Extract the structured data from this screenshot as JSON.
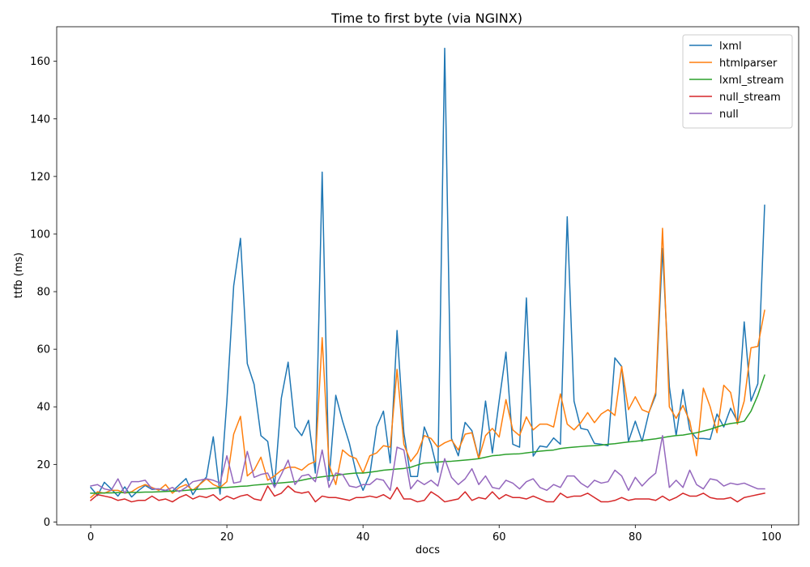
{
  "chart_data": {
    "type": "line",
    "title": "Time to first byte (via NGINX)",
    "xlabel": "docs",
    "ylabel": "ttfb (ms)",
    "xlim": [
      -5,
      104
    ],
    "ylim": [
      -1,
      172
    ],
    "xticks": [
      0,
      20,
      40,
      60,
      80,
      100
    ],
    "yticks": [
      0,
      20,
      40,
      60,
      80,
      100,
      120,
      140,
      160
    ],
    "grid": false,
    "legend_position": "top-right",
    "series": [
      {
        "name": "lxml",
        "color": "#1f77b4",
        "values": [
          12.0,
          9.2,
          13.8,
          11.5,
          9.0,
          12.2,
          8.7,
          10.9,
          12.7,
          11.3,
          11.5,
          10.8,
          10.7,
          12.9,
          15.1,
          9.5,
          13.1,
          15.6,
          29.6,
          9.7,
          42.0,
          82.0,
          98.5,
          55.0,
          47.8,
          30.0,
          28.0,
          12.4,
          43.0,
          55.5,
          33.0,
          30.0,
          35.3,
          17.0,
          121.5,
          14.4,
          44.0,
          35.0,
          27.3,
          17.0,
          11.0,
          16.4,
          33.0,
          38.5,
          20.5,
          66.5,
          31.0,
          15.8,
          15.8,
          33.0,
          27.0,
          17.3,
          164.5,
          29.0,
          23.0,
          34.6,
          31.7,
          22.0,
          42.0,
          24.0,
          42.0,
          59.0,
          27.0,
          26.0,
          77.8,
          22.9,
          26.4,
          26.0,
          29.2,
          27.0,
          106.0,
          42.0,
          32.5,
          32.0,
          27.3,
          27.0,
          26.5,
          57.0,
          54.0,
          28.0,
          35.0,
          28.0,
          38.0,
          44.0,
          95.0,
          47.0,
          30.0,
          46.0,
          32.0,
          29.0,
          29.0,
          28.7,
          37.5,
          33.0,
          39.5,
          35.0,
          69.5,
          42.0,
          48.0,
          110.0
        ]
      },
      {
        "name": "htmlparser",
        "color": "#ff7f0e",
        "values": [
          8.5,
          10.5,
          10.0,
          11.0,
          11.0,
          10.0,
          10.5,
          12.0,
          13.0,
          12.0,
          11.0,
          13.0,
          10.0,
          12.0,
          13.0,
          11.0,
          13.0,
          15.0,
          13.0,
          12.0,
          14.0,
          30.5,
          36.7,
          16.0,
          18.0,
          22.5,
          14.5,
          16.0,
          18.0,
          19.0,
          19.0,
          18.0,
          20.0,
          21.0,
          64.0,
          20.0,
          13.0,
          25.0,
          23.0,
          22.0,
          17.0,
          23.0,
          24.0,
          26.5,
          26.0,
          53.0,
          27.0,
          21.0,
          24.0,
          30.0,
          29.0,
          26.0,
          27.5,
          28.5,
          25.0,
          30.5,
          31.0,
          22.0,
          30.0,
          32.5,
          29.5,
          42.5,
          32.0,
          30.0,
          36.5,
          32.0,
          34.0,
          34.0,
          33.0,
          44.5,
          34.0,
          32.0,
          34.5,
          38.0,
          34.5,
          37.5,
          39.0,
          37.0,
          54.0,
          39.0,
          43.5,
          39.0,
          38.0,
          45.0,
          102.0,
          40.0,
          36.0,
          40.5,
          35.0,
          23.0,
          46.5,
          40.0,
          31.0,
          47.5,
          45.0,
          34.0,
          42.0,
          60.5,
          61.0,
          73.5
        ]
      },
      {
        "name": "lxml_stream",
        "color": "#2ca02c",
        "values": [
          10.0,
          10.0,
          10.1,
          10.1,
          10.2,
          10.2,
          10.3,
          10.3,
          10.4,
          10.4,
          10.5,
          10.6,
          10.7,
          10.8,
          11.0,
          11.2,
          11.4,
          11.5,
          11.7,
          11.9,
          12.0,
          12.2,
          12.4,
          12.5,
          12.8,
          13.0,
          13.2,
          13.4,
          13.6,
          13.8,
          14.0,
          14.5,
          15.0,
          15.4,
          15.7,
          16.0,
          16.2,
          16.5,
          16.8,
          17.0,
          17.0,
          17.3,
          17.6,
          18.0,
          18.2,
          18.4,
          18.6,
          19.0,
          19.8,
          20.5,
          20.6,
          20.8,
          21.0,
          21.1,
          21.3,
          21.5,
          21.7,
          22.0,
          22.5,
          23.0,
          23.2,
          23.5,
          23.6,
          23.7,
          24.0,
          24.3,
          24.6,
          24.8,
          25.0,
          25.5,
          25.8,
          26.0,
          26.2,
          26.4,
          26.5,
          26.7,
          27.0,
          27.2,
          27.5,
          27.8,
          28.0,
          28.3,
          28.6,
          28.9,
          29.3,
          29.7,
          30.0,
          30.2,
          30.6,
          31.0,
          31.6,
          32.2,
          33.0,
          33.7,
          34.2,
          34.5,
          35.0,
          38.5,
          44.0,
          51.0
        ]
      },
      {
        "name": "null_stream",
        "color": "#d62728",
        "values": [
          7.5,
          9.5,
          9.0,
          8.5,
          7.5,
          8.0,
          7.0,
          7.5,
          7.5,
          9.0,
          7.5,
          8.0,
          7.0,
          8.5,
          9.5,
          8.0,
          9.0,
          8.5,
          9.5,
          7.5,
          9.0,
          8.0,
          9.0,
          9.5,
          8.0,
          7.5,
          12.5,
          9.0,
          10.0,
          12.5,
          10.5,
          10.0,
          10.5,
          7.0,
          9.0,
          8.5,
          8.5,
          8.0,
          7.5,
          8.5,
          8.5,
          9.0,
          8.5,
          9.5,
          8.0,
          12.0,
          8.0,
          8.0,
          7.0,
          7.5,
          10.5,
          9.0,
          7.0,
          7.5,
          8.0,
          10.5,
          7.5,
          8.5,
          8.0,
          10.5,
          8.0,
          9.5,
          8.5,
          8.5,
          8.0,
          9.0,
          8.0,
          7.0,
          7.0,
          10.0,
          8.5,
          9.0,
          9.0,
          10.0,
          8.5,
          7.0,
          7.0,
          7.5,
          8.5,
          7.5,
          8.0,
          8.0,
          8.0,
          7.5,
          9.0,
          7.5,
          8.5,
          10.0,
          9.0,
          9.0,
          10.0,
          8.5,
          8.0,
          8.0,
          8.5,
          7.0,
          8.5,
          9.0,
          9.5,
          10.0
        ]
      },
      {
        "name": "null",
        "color": "#9467bd",
        "values": [
          12.5,
          13.0,
          11.5,
          11.0,
          15.0,
          10.0,
          14.0,
          14.0,
          14.5,
          11.5,
          11.5,
          11.0,
          12.0,
          10.5,
          12.0,
          14.0,
          14.5,
          15.0,
          14.5,
          13.5,
          23.0,
          13.5,
          14.0,
          24.5,
          15.5,
          16.5,
          17.0,
          12.0,
          16.5,
          21.5,
          13.0,
          16.0,
          16.5,
          14.0,
          25.0,
          12.0,
          17.0,
          16.5,
          12.5,
          12.0,
          13.0,
          13.0,
          15.0,
          14.5,
          11.0,
          26.0,
          25.0,
          11.5,
          14.5,
          13.0,
          14.5,
          12.5,
          22.0,
          15.5,
          13.0,
          15.0,
          18.5,
          13.0,
          16.0,
          12.0,
          11.5,
          14.5,
          13.5,
          11.5,
          14.0,
          15.0,
          12.0,
          11.0,
          13.0,
          12.0,
          16.0,
          16.0,
          13.5,
          12.0,
          14.5,
          13.5,
          14.0,
          18.0,
          16.0,
          11.0,
          15.5,
          12.5,
          15.0,
          17.0,
          30.0,
          12.0,
          14.5,
          12.0,
          18.0,
          13.0,
          11.5,
          15.0,
          14.5,
          12.5,
          13.5,
          13.0,
          13.5,
          12.5,
          11.5,
          11.5
        ]
      }
    ]
  }
}
